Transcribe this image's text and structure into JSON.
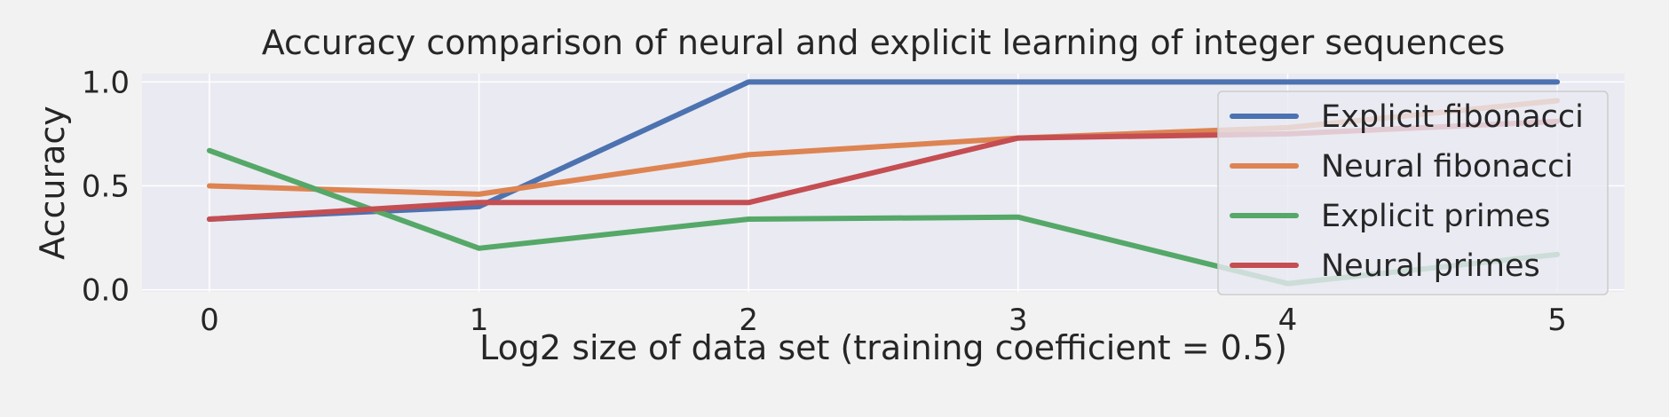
{
  "chart_data": {
    "type": "line",
    "title": "Accuracy comparison of neural and explicit learning of integer sequences",
    "xlabel": "Log2 size of data set (training coefficient = 0.5)",
    "ylabel": "Accuracy",
    "x": [
      0,
      1,
      2,
      3,
      4,
      5
    ],
    "xticks": [
      "0",
      "1",
      "2",
      "3",
      "4",
      "5"
    ],
    "yticks": [
      "0.0",
      "0.5",
      "1.0"
    ],
    "xlim": [
      -0.25,
      5.25
    ],
    "ylim": [
      -0.01,
      1.04
    ],
    "grid": true,
    "legend_position": "right",
    "series": [
      {
        "name": "Explicit fibonacci",
        "color": "#4c72b0",
        "values": [
          0.34,
          0.4,
          1.0,
          1.0,
          1.0,
          1.0
        ]
      },
      {
        "name": "Neural fibonacci",
        "color": "#dd8452",
        "values": [
          0.5,
          0.46,
          0.65,
          0.73,
          0.78,
          0.91
        ]
      },
      {
        "name": "Explicit primes",
        "color": "#55a868",
        "values": [
          0.67,
          0.2,
          0.34,
          0.35,
          0.03,
          0.17
        ]
      },
      {
        "name": "Neural primes",
        "color": "#c44e52",
        "values": [
          0.34,
          0.42,
          0.42,
          0.73,
          0.75,
          0.81
        ]
      }
    ]
  }
}
